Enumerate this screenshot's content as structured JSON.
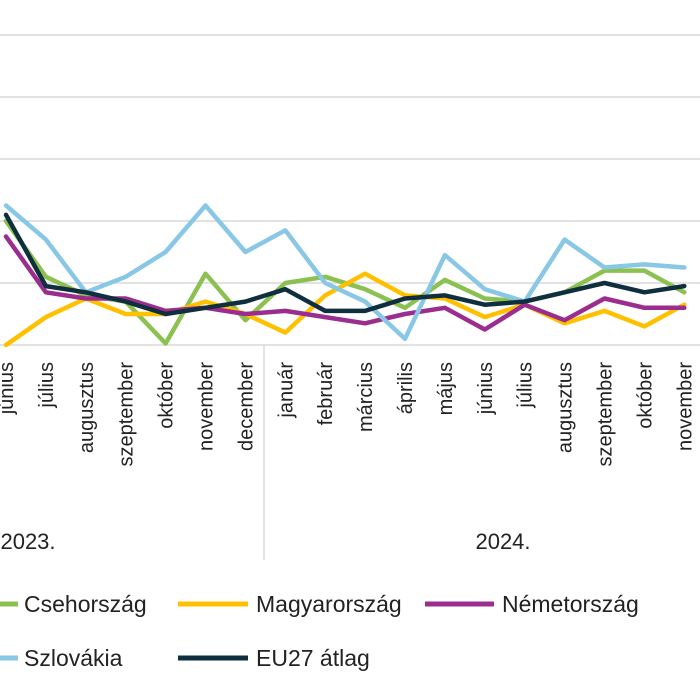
{
  "chart_data": {
    "type": "line",
    "title": "",
    "xlabel": "",
    "ylabel": "",
    "ylim": [
      0,
      10
    ],
    "grid": true,
    "legend_position": "bottom",
    "categories": [
      "június",
      "július",
      "augusztus",
      "szeptember",
      "október",
      "november",
      "december",
      "január",
      "február",
      "március",
      "április",
      "május",
      "június",
      "július",
      "augusztus",
      "szeptember",
      "október",
      "november"
    ],
    "year_groups": [
      {
        "label": "2023.",
        "start": 0,
        "end": 6
      },
      {
        "label": "2024.",
        "start": 7,
        "end": 17
      }
    ],
    "x_start": -0.05,
    "series": [
      {
        "name": "Csehország",
        "color": "#8cc152",
        "values": [
          4.0,
          2.2,
          1.6,
          1.4,
          0.05,
          2.3,
          0.8,
          2.0,
          2.2,
          1.8,
          1.2,
          2.1,
          1.5,
          1.4,
          1.7,
          2.4,
          2.4,
          1.7
        ]
      },
      {
        "name": "Magyarország",
        "color": "#ffc000",
        "values": [
          0.0,
          0.9,
          1.5,
          1.0,
          1.0,
          1.4,
          1.0,
          0.4,
          1.6,
          2.3,
          1.6,
          1.5,
          0.9,
          1.3,
          0.7,
          1.1,
          0.6,
          1.3
        ]
      },
      {
        "name": "Németország",
        "color": "#9b2d8f",
        "values": [
          3.5,
          1.7,
          1.5,
          1.5,
          1.1,
          1.2,
          1.0,
          1.1,
          0.9,
          0.7,
          1.0,
          1.2,
          0.5,
          1.3,
          0.8,
          1.5,
          1.2,
          1.2
        ]
      },
      {
        "name": "Szlovákia",
        "color": "#89c7e6",
        "values": [
          4.5,
          3.4,
          1.7,
          2.2,
          3.0,
          4.5,
          3.0,
          3.7,
          2.0,
          1.4,
          0.2,
          2.9,
          1.8,
          1.4,
          3.4,
          2.5,
          2.6,
          2.5
        ]
      },
      {
        "name": "EU27 átlag",
        "color": "#0f2f3f",
        "values": [
          4.2,
          1.9,
          1.7,
          1.4,
          1.0,
          1.2,
          1.4,
          1.8,
          1.1,
          1.1,
          1.5,
          1.6,
          1.3,
          1.4,
          1.7,
          2.0,
          1.7,
          1.9
        ]
      }
    ]
  }
}
